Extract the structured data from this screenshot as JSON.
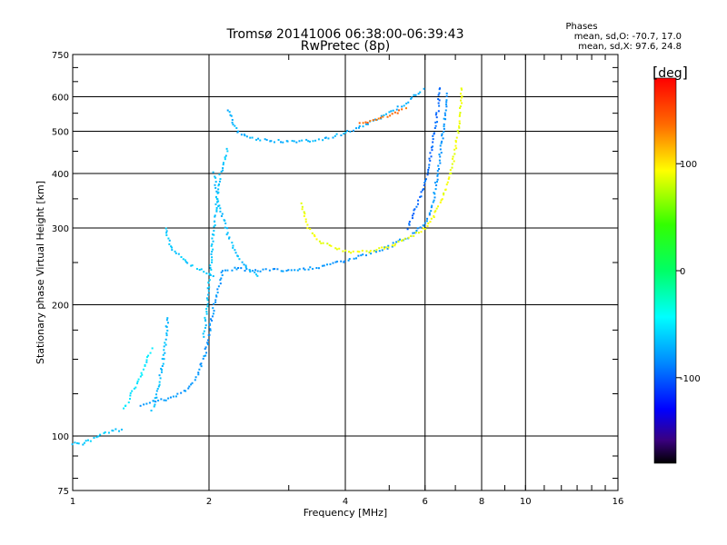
{
  "title": "Tromsø 20141006 06:38:00-06:39:43",
  "subtitle": "RwPretec (8p)",
  "stats": {
    "heading": "Phases",
    "line_o": "mean, sd,O: -70.7, 17.0",
    "line_x": "mean, sd,X:  97.6, 24.8"
  },
  "colorbar": {
    "unit": "deg",
    "ticks": [
      "100",
      "0",
      "-100"
    ],
    "tick_values": [
      100,
      0,
      -100
    ],
    "range": [
      -180,
      180
    ]
  },
  "chart_data": {
    "type": "scatter",
    "xlabel": "Frequency [MHz]",
    "ylabel": "Stationary phase Virtual Height [km]",
    "x_scale": "log",
    "y_scale": "log",
    "xlim": [
      1,
      16
    ],
    "ylim": [
      75,
      750
    ],
    "xticks": [
      1,
      2,
      4,
      6,
      8,
      10,
      16
    ],
    "xtick_labels": [
      "1",
      "2",
      "4",
      "6",
      "8",
      "10",
      "16"
    ],
    "yticks": [
      75,
      100,
      200,
      300,
      400,
      500,
      600,
      750
    ],
    "ytick_labels": [
      "75",
      "100",
      "200",
      "300",
      "400",
      "500",
      "600",
      "750"
    ],
    "grid": true,
    "color_by": "phase (deg)",
    "traces": [
      {
        "points": [
          [
            1.42,
            118
          ],
          [
            1.5,
            120
          ],
          [
            1.65,
            122
          ],
          [
            1.8,
            128
          ],
          [
            1.9,
            140
          ],
          [
            1.98,
            160
          ],
          [
            2.05,
            200
          ],
          [
            2.15,
            240
          ],
          [
            2.3,
            242
          ],
          [
            2.5,
            240
          ],
          [
            3.0,
            240
          ],
          [
            3.5,
            244
          ],
          [
            4.0,
            252
          ],
          [
            4.5,
            262
          ],
          [
            5.0,
            272
          ],
          [
            5.5,
            286
          ],
          [
            6.0,
            305
          ],
          [
            6.2,
            330
          ],
          [
            6.4,
            400
          ],
          [
            6.55,
            480
          ],
          [
            6.65,
            560
          ],
          [
            6.7,
            620
          ]
        ],
        "phase": -80,
        "spread": 6
      },
      {
        "points": [
          [
            1.5,
            115
          ],
          [
            1.55,
            130
          ],
          [
            1.6,
            160
          ],
          [
            1.62,
            190
          ]
        ],
        "phase": -65,
        "spread": 6
      },
      {
        "points": [
          [
            1.3,
            115
          ],
          [
            1.4,
            135
          ],
          [
            1.5,
            160
          ]
        ],
        "phase": -50,
        "spread": 6
      },
      {
        "points": [
          [
            1.0,
            96
          ],
          [
            1.05,
            96
          ],
          [
            1.1,
            98
          ],
          [
            1.2,
            102
          ],
          [
            1.3,
            104
          ]
        ],
        "phase": -60,
        "spread": 6
      },
      {
        "points": [
          [
            1.6,
            300
          ],
          [
            1.65,
            270
          ],
          [
            1.8,
            248
          ],
          [
            2.0,
            235
          ],
          [
            2.05,
            230
          ]
        ],
        "phase": -60,
        "spread": 6
      },
      {
        "points": [
          [
            2.05,
            400
          ],
          [
            2.1,
            340
          ],
          [
            2.2,
            290
          ],
          [
            2.3,
            260
          ],
          [
            2.45,
            240
          ],
          [
            2.6,
            230
          ]
        ],
        "phase": -65,
        "spread": 6
      },
      {
        "points": [
          [
            1.95,
            170
          ],
          [
            2.0,
            220
          ],
          [
            2.05,
            300
          ],
          [
            2.1,
            380
          ],
          [
            2.2,
            460
          ]
        ],
        "phase": -62,
        "spread": 6
      },
      {
        "points": [
          [
            2.2,
            560
          ],
          [
            2.3,
            500
          ],
          [
            2.5,
            480
          ],
          [
            3.0,
            472
          ],
          [
            3.5,
            478
          ],
          [
            4.0,
            495
          ],
          [
            4.5,
            520
          ],
          [
            5.0,
            550
          ],
          [
            5.5,
            585
          ],
          [
            6.0,
            630
          ]
        ],
        "phase": -70,
        "spread": 6
      },
      {
        "points": [
          [
            3.2,
            340
          ],
          [
            3.3,
            300
          ],
          [
            3.5,
            280
          ],
          [
            4.0,
            265
          ],
          [
            4.5,
            265
          ],
          [
            5.0,
            272
          ],
          [
            5.5,
            285
          ],
          [
            6.0,
            300
          ],
          [
            6.3,
            320
          ],
          [
            6.6,
            360
          ],
          [
            6.9,
            420
          ],
          [
            7.1,
            500
          ],
          [
            7.2,
            570
          ],
          [
            7.25,
            640
          ]
        ],
        "phase": 95,
        "spread": 6
      },
      {
        "points": [
          [
            4.3,
            520
          ],
          [
            5.0,
            545
          ],
          [
            5.5,
            565
          ]
        ],
        "phase": 140,
        "spread": 6
      },
      {
        "points": [
          [
            5.5,
            300
          ],
          [
            6.0,
            380
          ],
          [
            6.2,
            450
          ],
          [
            6.4,
            560
          ],
          [
            6.5,
            640
          ]
        ],
        "phase": -95,
        "spread": 6
      }
    ]
  }
}
